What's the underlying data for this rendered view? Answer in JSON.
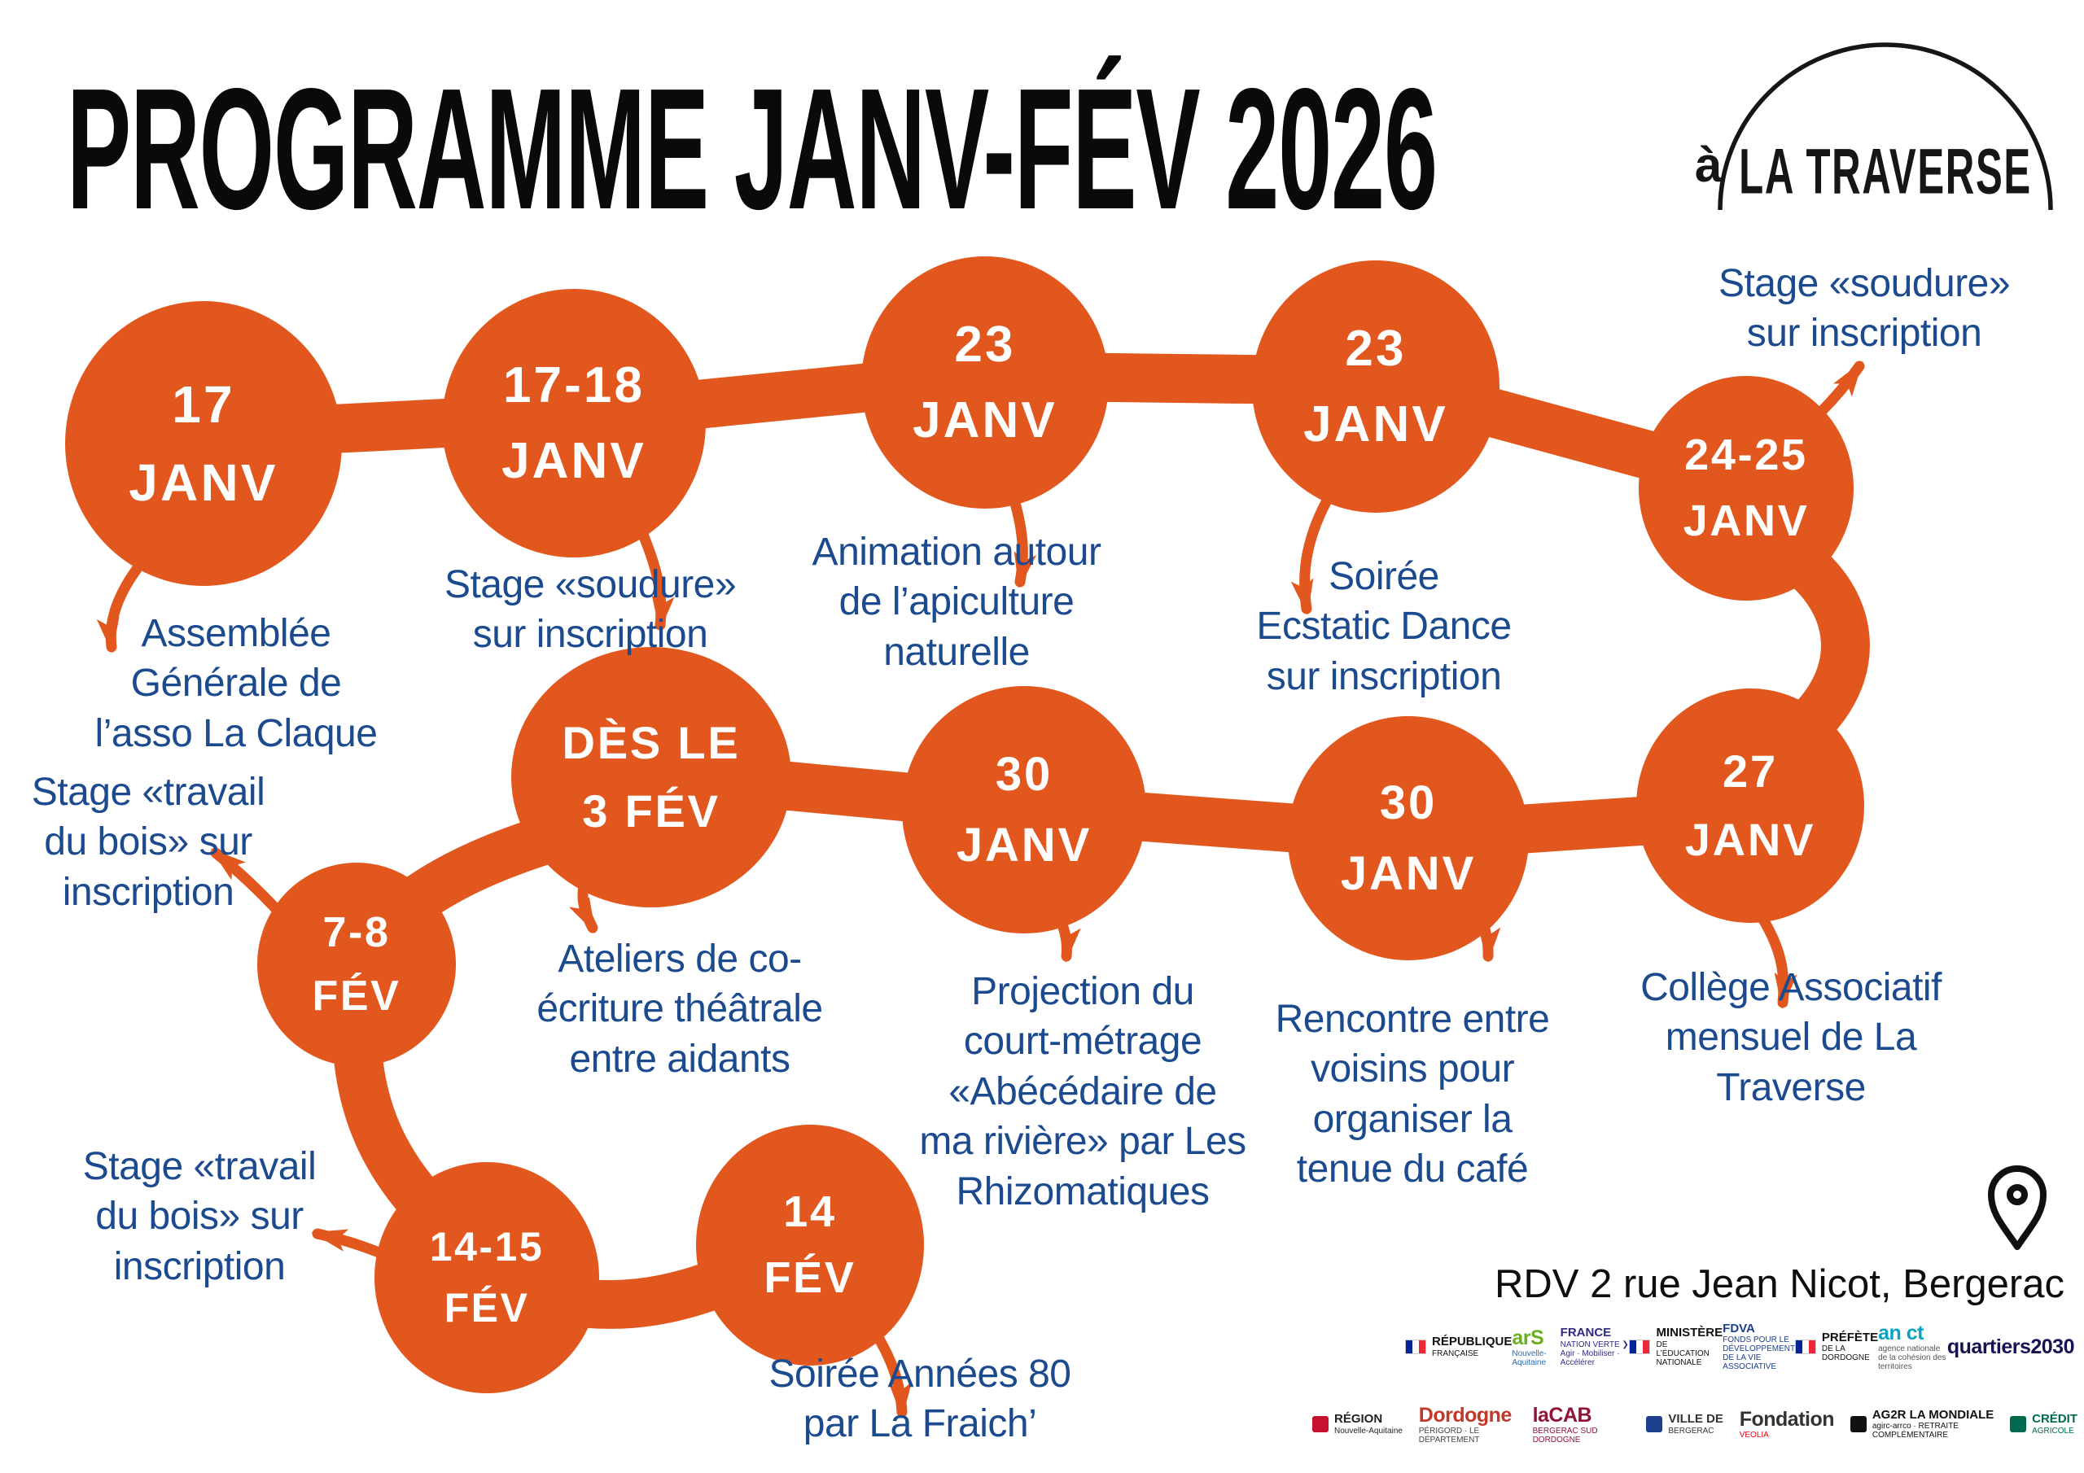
{
  "title": "PROGRAMME JANV-FÉV 2026",
  "brand": {
    "prefix": "à",
    "name": "LA TRAVERSE"
  },
  "address": "RDV 2 rue Jean Nicot, Bergerac",
  "colors": {
    "orange": "#E2571E",
    "blue": "#1C4A8E",
    "black": "#111111"
  },
  "events": [
    {
      "date": "17",
      "month": "JANV",
      "desc": "Assemblée\nGénérale de\nl’asso La Claque"
    },
    {
      "date": "17-18",
      "month": "JANV",
      "desc": "Stage «soudure»\nsur inscription"
    },
    {
      "date": "23",
      "month": "JANV",
      "desc": "Animation autour\nde l’apiculture\nnaturelle"
    },
    {
      "date": "23",
      "month": "JANV",
      "desc": "Soirée\nEcstatic Dance\nsur inscription"
    },
    {
      "date": "24-25",
      "month": "JANV",
      "desc": "Stage «soudure»\nsur inscription"
    },
    {
      "date": "27",
      "month": "JANV",
      "desc": "Collège Associatif\nmensuel de La\nTraverse"
    },
    {
      "date": "30",
      "month": "JANV",
      "desc": "Projection du\ncourt-métrage\n«Abécédaire de\nma rivière» par Les\nRhizomatiques"
    },
    {
      "date": "30",
      "month": "JANV",
      "desc": "Rencontre entre\nvoisins pour\norganiser la\ntenue du café"
    },
    {
      "date": "DÈS LE",
      "month": "3 FÉV",
      "desc": "Ateliers de co-\nécriture théâtrale\nentre aidants"
    },
    {
      "date": "7-8",
      "month": "FÉV",
      "desc": "Stage «travail\ndu bois» sur\ninscription"
    },
    {
      "date": "14-15",
      "month": "FÉV",
      "desc": "Stage «travail\ndu bois» sur\ninscription"
    },
    {
      "date": "14",
      "month": "FÉV",
      "desc": "Soirée Années 80\npar La Fraich’"
    }
  ],
  "logos": {
    "row1": [
      {
        "flag": true,
        "l1": "RÉPUBLIQUE",
        "l2": "FRANÇAISE",
        "c1": "#111111",
        "c2": "#111111"
      },
      {
        "big": true,
        "l1": "arS",
        "c1": "#6ab023",
        "l2": "Nouvelle-Aquitaine",
        "c2": "#2b6cb0"
      },
      {
        "l1": "FRANCE",
        "l2": "NATION VERTE ❯ Agir · Mobiliser · Accélérer",
        "c1": "#2d2d86",
        "c2": "#2d2d86"
      },
      {
        "flag": true,
        "l1": "MINISTÈRE",
        "l2": "DE L’ÉDUCATION NATIONALE",
        "c1": "#111111",
        "c2": "#111111"
      },
      {
        "l1": "FDVA",
        "l2": "FONDS POUR LE DÉVELOPPEMENT DE LA VIE ASSOCIATIVE",
        "c1": "#1d3f8e",
        "c2": "#1d3f8e"
      },
      {
        "flag": true,
        "l1": "PRÉFÈTE",
        "l2": "DE LA DORDOGNE",
        "c1": "#111111",
        "c2": "#111111"
      },
      {
        "l1": "an ct",
        "l2": "agence nationale de la cohésion des territoires",
        "c1": "#0aa3c2",
        "c2": "#555555",
        "big": true
      },
      {
        "l1": "quartiers2030",
        "c1": "#141452",
        "big": true
      }
    ],
    "row2": [
      {
        "sq": "#c4122f",
        "l1": "RÉGION",
        "l2": "Nouvelle-Aquitaine",
        "c1": "#222222",
        "c2": "#222222"
      },
      {
        "big": true,
        "l1": "Dordogne",
        "c1": "#c0392b",
        "l2": "PÉRIGORD · LE DÉPARTEMENT",
        "c2": "#444444"
      },
      {
        "big": true,
        "l1": "laCAB",
        "c1": "#8e1537",
        "l2": "BERGERAC SUD DORDOGNE",
        "c2": "#8e1537"
      },
      {
        "sq": "#1d3f8e",
        "l1": "VILLE DE",
        "l2": "BERGERAC",
        "c1": "#333333",
        "c2": "#333333"
      },
      {
        "big": true,
        "l1": "Fondation",
        "c1": "#333333",
        "l2": "VEOLIA",
        "c2": "#e30613"
      },
      {
        "sq": "#111111",
        "l1": "AG2R LA MONDIALE",
        "l2": "agirc-arrco · RETRAITE COMPLÉMENTAIRE",
        "c1": "#111111",
        "c2": "#111111"
      },
      {
        "sq": "#006a4e",
        "l1": "CRÉDIT",
        "l2": "AGRICOLE",
        "c1": "#006a4e",
        "c2": "#006a4e"
      }
    ]
  }
}
